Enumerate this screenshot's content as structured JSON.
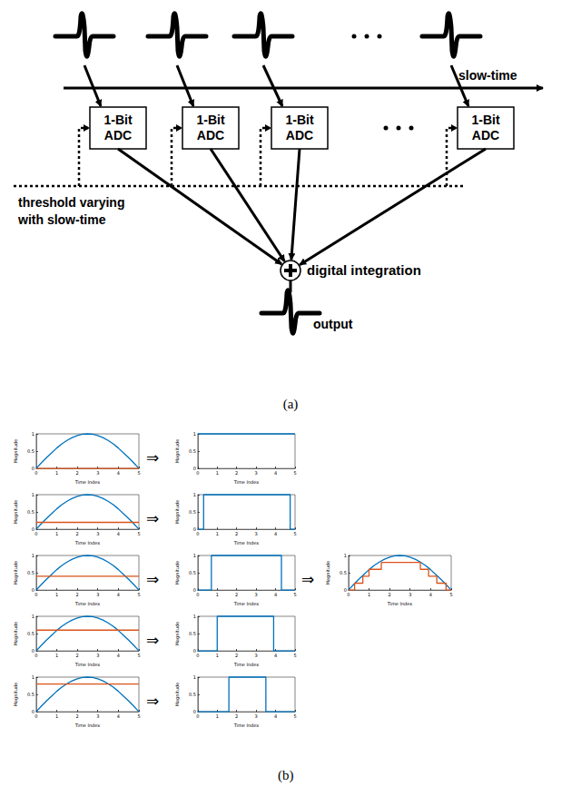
{
  "diagram": {
    "panel_label": "(a)",
    "axis_label": "slow-time",
    "adc_boxes": [
      [
        "1-Bit",
        "ADC"
      ],
      [
        "1-Bit",
        "ADC"
      ],
      [
        "1-Bit",
        "ADC"
      ],
      [
        "1-Bit",
        "ADC"
      ]
    ],
    "threshold_label": [
      "threshold varying",
      "with slow-time"
    ],
    "sum_label": "digital integration",
    "output_label": "output"
  },
  "panel_b": {
    "panel_label": "(b)",
    "arrows": [
      "⇒",
      "⇒",
      "⇒",
      "⇒",
      "⇒",
      "⇒"
    ]
  },
  "chart_data": [
    {
      "type": "line",
      "xlabel": "Time Index",
      "ylabel": "Magnitude",
      "xlim": [
        0,
        5
      ],
      "ylim": [
        0,
        1
      ],
      "xticks": [
        0,
        1,
        2,
        3,
        4,
        5
      ],
      "yticks": [
        0,
        0.5,
        1
      ],
      "series": [
        {
          "color": "#0072bd",
          "x": [
            0,
            0.25,
            0.5,
            0.75,
            1,
            1.25,
            1.5,
            1.75,
            2,
            2.25,
            2.5,
            2.75,
            3,
            3.25,
            3.5,
            3.75,
            4,
            4.25,
            4.5,
            4.75,
            5
          ],
          "values": [
            0,
            0.16,
            0.31,
            0.45,
            0.59,
            0.71,
            0.81,
            0.89,
            0.95,
            0.99,
            1,
            0.99,
            0.95,
            0.89,
            0.81,
            0.71,
            0.59,
            0.45,
            0.31,
            0.16,
            0
          ]
        },
        {
          "color": "#d95319",
          "x": [
            0,
            5
          ],
          "values": [
            0,
            0
          ]
        }
      ]
    },
    {
      "type": "line",
      "xlabel": "Time Index",
      "ylabel": "Magnitude",
      "xlim": [
        0,
        5
      ],
      "ylim": [
        0,
        1
      ],
      "xticks": [
        0,
        1,
        2,
        3,
        4,
        5
      ],
      "yticks": [
        0,
        0.5,
        1
      ],
      "series": [
        {
          "color": "#0072bd",
          "x": [
            0,
            0.25,
            0.5,
            0.75,
            1,
            1.25,
            1.5,
            1.75,
            2,
            2.25,
            2.5,
            2.75,
            3,
            3.25,
            3.5,
            3.75,
            4,
            4.25,
            4.5,
            4.75,
            5
          ],
          "values": [
            0,
            0.16,
            0.31,
            0.45,
            0.59,
            0.71,
            0.81,
            0.89,
            0.95,
            0.99,
            1,
            0.99,
            0.95,
            0.89,
            0.81,
            0.71,
            0.59,
            0.45,
            0.31,
            0.16,
            0
          ]
        },
        {
          "color": "#d95319",
          "x": [
            0,
            5
          ],
          "values": [
            0.2,
            0.2
          ]
        }
      ]
    },
    {
      "type": "line",
      "xlabel": "Time Index",
      "ylabel": "Magnitude",
      "xlim": [
        0,
        5
      ],
      "ylim": [
        0,
        1
      ],
      "xticks": [
        0,
        1,
        2,
        3,
        4,
        5
      ],
      "yticks": [
        0,
        0.5,
        1
      ],
      "series": [
        {
          "color": "#0072bd",
          "x": [
            0,
            0.25,
            0.5,
            0.75,
            1,
            1.25,
            1.5,
            1.75,
            2,
            2.25,
            2.5,
            2.75,
            3,
            3.25,
            3.5,
            3.75,
            4,
            4.25,
            4.5,
            4.75,
            5
          ],
          "values": [
            0,
            0.16,
            0.31,
            0.45,
            0.59,
            0.71,
            0.81,
            0.89,
            0.95,
            0.99,
            1,
            0.99,
            0.95,
            0.89,
            0.81,
            0.71,
            0.59,
            0.45,
            0.31,
            0.16,
            0
          ]
        },
        {
          "color": "#d95319",
          "x": [
            0,
            5
          ],
          "values": [
            0.4,
            0.4
          ]
        }
      ]
    },
    {
      "type": "line",
      "xlabel": "Time Index",
      "ylabel": "Magnitude",
      "xlim": [
        0,
        5
      ],
      "ylim": [
        0,
        1
      ],
      "xticks": [
        0,
        1,
        2,
        3,
        4,
        5
      ],
      "yticks": [
        0,
        0.5,
        1
      ],
      "series": [
        {
          "color": "#0072bd",
          "x": [
            0,
            0.25,
            0.5,
            0.75,
            1,
            1.25,
            1.5,
            1.75,
            2,
            2.25,
            2.5,
            2.75,
            3,
            3.25,
            3.5,
            3.75,
            4,
            4.25,
            4.5,
            4.75,
            5
          ],
          "values": [
            0,
            0.16,
            0.31,
            0.45,
            0.59,
            0.71,
            0.81,
            0.89,
            0.95,
            0.99,
            1,
            0.99,
            0.95,
            0.89,
            0.81,
            0.71,
            0.59,
            0.45,
            0.31,
            0.16,
            0
          ]
        },
        {
          "color": "#d95319",
          "x": [
            0,
            5
          ],
          "values": [
            0.6,
            0.6
          ]
        }
      ]
    },
    {
      "type": "line",
      "xlabel": "Time Index",
      "ylabel": "Magnitude",
      "xlim": [
        0,
        5
      ],
      "ylim": [
        0,
        1
      ],
      "xticks": [
        0,
        1,
        2,
        3,
        4,
        5
      ],
      "yticks": [
        0,
        0.5,
        1
      ],
      "series": [
        {
          "color": "#0072bd",
          "x": [
            0,
            0.25,
            0.5,
            0.75,
            1,
            1.25,
            1.5,
            1.75,
            2,
            2.25,
            2.5,
            2.75,
            3,
            3.25,
            3.5,
            3.75,
            4,
            4.25,
            4.5,
            4.75,
            5
          ],
          "values": [
            0,
            0.16,
            0.31,
            0.45,
            0.59,
            0.71,
            0.81,
            0.89,
            0.95,
            0.99,
            1,
            0.99,
            0.95,
            0.89,
            0.81,
            0.71,
            0.59,
            0.45,
            0.31,
            0.16,
            0
          ]
        },
        {
          "color": "#d95319",
          "x": [
            0,
            5
          ],
          "values": [
            0.8,
            0.8
          ]
        }
      ]
    },
    {
      "type": "line",
      "xlabel": "Time Index",
      "ylabel": "Magnitude",
      "xlim": [
        0,
        5
      ],
      "ylim": [
        0,
        1
      ],
      "xticks": [
        0,
        1,
        2,
        3,
        4,
        5
      ],
      "yticks": [
        0,
        0.5,
        1
      ],
      "series": [
        {
          "color": "#0072bd",
          "x": [
            0,
            5
          ],
          "values": [
            1,
            1
          ]
        }
      ]
    },
    {
      "type": "line",
      "xlabel": "Time Index",
      "ylabel": "Magnitude",
      "xlim": [
        0,
        5
      ],
      "ylim": [
        0,
        1
      ],
      "xticks": [
        0,
        1,
        2,
        3,
        4,
        5
      ],
      "yticks": [
        0,
        0.5,
        1
      ],
      "series": [
        {
          "color": "#0072bd",
          "x": [
            0,
            0.3,
            0.3,
            4.75,
            4.75,
            5
          ],
          "values": [
            0,
            0,
            1,
            1,
            0,
            0
          ]
        }
      ]
    },
    {
      "type": "line",
      "xlabel": "Time Index",
      "ylabel": "Magnitude",
      "xlim": [
        0,
        5
      ],
      "ylim": [
        0,
        1
      ],
      "xticks": [
        0,
        1,
        2,
        3,
        4,
        5
      ],
      "yticks": [
        0,
        0.5,
        1
      ],
      "series": [
        {
          "color": "#0072bd",
          "x": [
            0,
            0.7,
            0.7,
            4.3,
            4.3,
            5
          ],
          "values": [
            0,
            0,
            1,
            1,
            0,
            0
          ]
        }
      ]
    },
    {
      "type": "line",
      "xlabel": "Time Index",
      "ylabel": "Magnitude",
      "xlim": [
        0,
        5
      ],
      "ylim": [
        0,
        1
      ],
      "xticks": [
        0,
        1,
        2,
        3,
        4,
        5
      ],
      "yticks": [
        0,
        0.5,
        1
      ],
      "series": [
        {
          "color": "#0072bd",
          "x": [
            0,
            1,
            1,
            3.9,
            3.9,
            5
          ],
          "values": [
            0,
            0,
            1,
            1,
            0,
            0
          ]
        }
      ]
    },
    {
      "type": "line",
      "xlabel": "Time Index",
      "ylabel": "Magnitude",
      "xlim": [
        0,
        5
      ],
      "ylim": [
        0,
        1
      ],
      "xticks": [
        0,
        1,
        2,
        3,
        4,
        5
      ],
      "yticks": [
        0,
        0.5,
        1
      ],
      "series": [
        {
          "color": "#0072bd",
          "x": [
            0,
            1.6,
            1.6,
            3.5,
            3.5,
            5
          ],
          "values": [
            0,
            0,
            1,
            1,
            0,
            0
          ]
        }
      ]
    },
    {
      "type": "line",
      "xlabel": "Time Index",
      "ylabel": "Magnitude",
      "xlim": [
        0,
        5
      ],
      "ylim": [
        0,
        1
      ],
      "xticks": [
        0,
        1,
        2,
        3,
        4,
        5
      ],
      "yticks": [
        0,
        0.5,
        1
      ],
      "series": [
        {
          "color": "#0072bd",
          "x": [
            0,
            0.25,
            0.5,
            0.75,
            1,
            1.25,
            1.5,
            1.75,
            2,
            2.25,
            2.5,
            2.75,
            3,
            3.25,
            3.5,
            3.75,
            4,
            4.25,
            4.5,
            4.75,
            5
          ],
          "values": [
            0,
            0.16,
            0.31,
            0.45,
            0.59,
            0.71,
            0.81,
            0.89,
            0.95,
            0.99,
            1,
            0.99,
            0.95,
            0.89,
            0.81,
            0.71,
            0.59,
            0.45,
            0.31,
            0.16,
            0
          ]
        },
        {
          "color": "#d95319",
          "x": [
            0,
            0.3,
            0.3,
            0.7,
            0.7,
            1,
            1,
            1.6,
            1.6,
            3.5,
            3.5,
            3.9,
            3.9,
            4.3,
            4.3,
            4.75,
            4.75,
            5
          ],
          "values": [
            0,
            0,
            0.2,
            0.2,
            0.4,
            0.4,
            0.6,
            0.6,
            0.8,
            0.8,
            0.6,
            0.6,
            0.4,
            0.4,
            0.2,
            0.2,
            0,
            0
          ]
        }
      ]
    }
  ]
}
